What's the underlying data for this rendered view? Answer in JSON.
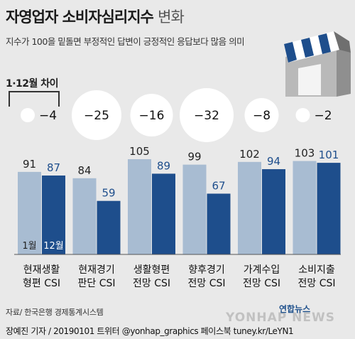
{
  "title": "자영업자 소비자심리지수",
  "title_suffix": "변화",
  "subtitle": "지수가 100을 밑돌면 부정적인 답변이 긍정적인 응답보다 많음 의미",
  "diff_label": "1·12월 차이",
  "legend": {
    "jan": "1월",
    "dec": "12월"
  },
  "source": "자료/ 한국은행 경제통계시스템",
  "credit": "장예진 기자 / 20190101 트위터 @yonhap_graphics  페이스북 tuney.kr/LeYN1",
  "logo": "연합뉴스",
  "watermark": "YONHAP NEWS",
  "colors": {
    "jan": "#a8bcd2",
    "dec": "#1e4e8c",
    "bubble": "#ffffff"
  },
  "chart_data": {
    "type": "bar",
    "categories": [
      "현재생활 형편 CSI",
      "현재경기 판단 CSI",
      "생활형편 전망 CSI",
      "향후경기 전망 CSI",
      "가계수입 전망 CSI",
      "소비지출 전망 CSI"
    ],
    "category_lines": [
      [
        "현재생활",
        "형편 CSI"
      ],
      [
        "현재경기",
        "판단 CSI"
      ],
      [
        "생활형편",
        "전망 CSI"
      ],
      [
        "향후경기",
        "전망 CSI"
      ],
      [
        "가계수입",
        "전망 CSI"
      ],
      [
        "소비지출",
        "전망 CSI"
      ]
    ],
    "series": [
      {
        "name": "1월",
        "values": [
          91,
          84,
          105,
          99,
          102,
          103
        ]
      },
      {
        "name": "12월",
        "values": [
          87,
          59,
          89,
          67,
          94,
          101
        ]
      }
    ],
    "differences": [
      "−4",
      "−25",
      "−16",
      "−32",
      "−8",
      "−2"
    ],
    "ylim": [
      0,
      105
    ]
  }
}
